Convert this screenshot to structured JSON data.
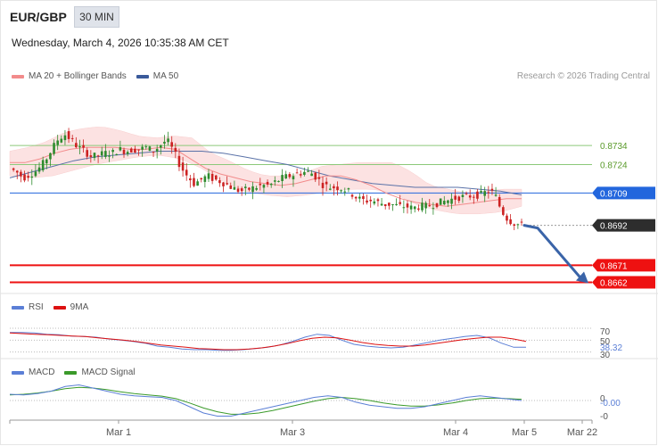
{
  "header": {
    "symbol": "EUR/GBP",
    "timeframe": "30 MIN",
    "datetime": "Wednesday, March 4, 2026 10:35:38 AM CET",
    "copyright": "Research © 2026 Trading Central"
  },
  "legends": {
    "main": [
      {
        "label": "MA 20 + Bollinger Bands",
        "color": "#f28b8b"
      },
      {
        "label": "MA 50",
        "color": "#3a5a9a"
      }
    ],
    "rsi": [
      {
        "label": "RSI",
        "color": "#5b7fd6"
      },
      {
        "label": "9MA",
        "color": "#dd1111"
      }
    ],
    "macd": [
      {
        "label": "MACD",
        "color": "#5b7fd6"
      },
      {
        "label": "MACD Signal",
        "color": "#3a9a2a"
      }
    ]
  },
  "colors": {
    "bull": "#2e8b2e",
    "bear": "#cc2222",
    "band_fill": "#fcdede",
    "ma20": "#f28b8b",
    "ma50": "#5a72a8",
    "support_red": "#ee1111",
    "green_level": "#8cc97a",
    "blue_level": "#2266dd",
    "current_tag": "#2d2d2d",
    "forecast_arrow": "#3a64a8"
  },
  "chart_data": [
    {
      "type": "candlestick",
      "title": "EUR/GBP 30 MIN",
      "x_tick_labels": [
        "Mar 1",
        "Mar 3",
        "Mar 4",
        "Mar 5",
        "Mar 22"
      ],
      "ylim": [
        0.8658,
        0.8766
      ],
      "price_levels": [
        {
          "value": 0.8734,
          "label": "0.8734",
          "kind": "resistance"
        },
        {
          "value": 0.8724,
          "label": "0.8724",
          "kind": "resistance"
        },
        {
          "value": 0.8709,
          "label": "0.8709",
          "kind": "pivot"
        },
        {
          "value": 0.8692,
          "label": "0.8692",
          "kind": "current"
        },
        {
          "value": 0.8671,
          "label": "0.8671",
          "kind": "support"
        },
        {
          "value": 0.8662,
          "label": "0.8662",
          "kind": "support"
        }
      ],
      "close_path": [
        0.8722,
        0.872,
        0.8717,
        0.8719,
        0.8721,
        0.8725,
        0.8731,
        0.8737,
        0.874,
        0.8737,
        0.8733,
        0.8731,
        0.8728,
        0.8729,
        0.873,
        0.873,
        0.8732,
        0.8731,
        0.8732,
        0.8732,
        0.8733,
        0.8731,
        0.8734,
        0.8737,
        0.8731,
        0.8723,
        0.8718,
        0.8714,
        0.8716,
        0.8718,
        0.8716,
        0.8715,
        0.8713,
        0.8711,
        0.871,
        0.8711,
        0.8712,
        0.8713,
        0.8713,
        0.8715,
        0.8717,
        0.8718,
        0.8719,
        0.872,
        0.872,
        0.8717,
        0.8713,
        0.8712,
        0.8712,
        0.8711,
        0.8709,
        0.8706,
        0.8705,
        0.8705,
        0.8704,
        0.8703,
        0.8703,
        0.8702,
        0.8702,
        0.8701,
        0.8702,
        0.8702,
        0.8703,
        0.8704,
        0.8705,
        0.8706,
        0.8707,
        0.8707,
        0.8708,
        0.8708,
        0.871,
        0.8709,
        0.87,
        0.8695,
        0.8693,
        0.8692
      ],
      "ma20_path": [
        0.8725,
        0.8725,
        0.8727,
        0.873,
        0.8732,
        0.8733,
        0.8733,
        0.8733,
        0.8732,
        0.8732,
        0.8733,
        0.8732,
        0.8727,
        0.8722,
        0.8719,
        0.8717,
        0.8715,
        0.8714,
        0.8713,
        0.8714,
        0.8716,
        0.8718,
        0.8718,
        0.8716,
        0.8713,
        0.8709,
        0.8706,
        0.8704,
        0.8703,
        0.8702,
        0.8703,
        0.8704,
        0.8705,
        0.8706,
        0.8706
      ],
      "ma50_path": [
        0.8717,
        0.872,
        0.8723,
        0.8726,
        0.8728,
        0.8729,
        0.873,
        0.8731,
        0.8731,
        0.8731,
        0.873,
        0.8728,
        0.8726,
        0.8724,
        0.8721,
        0.8718,
        0.8716,
        0.8714,
        0.8713,
        0.8712,
        0.8712,
        0.8712,
        0.8711,
        0.871,
        0.8708
      ],
      "bollinger_upper": [
        0.8731,
        0.8733,
        0.8736,
        0.8741,
        0.8743,
        0.8744,
        0.8742,
        0.8739,
        0.8738,
        0.8739,
        0.8738,
        0.873,
        0.8726,
        0.8721,
        0.8718,
        0.8718,
        0.8719,
        0.8723,
        0.8724,
        0.8725,
        0.8725,
        0.8725,
        0.872,
        0.8713,
        0.8711,
        0.8709,
        0.871,
        0.8711,
        0.8711
      ],
      "bollinger_lower": [
        0.8718,
        0.8717,
        0.8718,
        0.8721,
        0.8724,
        0.8726,
        0.8728,
        0.8729,
        0.8727,
        0.8722,
        0.8715,
        0.871,
        0.8708,
        0.8707,
        0.8708,
        0.871,
        0.8711,
        0.8711,
        0.8709,
        0.8703,
        0.87,
        0.8698,
        0.8698,
        0.8699,
        0.8702
      ],
      "forecast": {
        "from": 0.8692,
        "to": 0.8662,
        "direction": "down"
      }
    },
    {
      "type": "line",
      "title": "RSI",
      "y_tick_labels": [
        "70",
        "50",
        "38.32",
        "30"
      ],
      "last_value": "38.32",
      "series": [
        {
          "name": "RSI",
          "values": [
            63,
            63,
            62,
            60,
            59,
            57,
            56,
            55,
            52,
            50,
            48,
            45,
            40,
            38,
            35,
            34,
            34,
            33,
            33,
            34,
            36,
            38,
            42,
            48,
            55,
            60,
            58,
            50,
            43,
            40,
            38,
            37,
            38,
            42,
            46,
            50,
            53,
            56,
            58,
            54,
            45,
            38,
            38
          ]
        },
        {
          "name": "9MA",
          "values": [
            62,
            61,
            60,
            59,
            58,
            57,
            56,
            54,
            52,
            50,
            48,
            45,
            42,
            40,
            38,
            36,
            35,
            34,
            34,
            35,
            37,
            40,
            44,
            49,
            53,
            55,
            54,
            50,
            46,
            43,
            41,
            40,
            40,
            42,
            45,
            48,
            51,
            53,
            55,
            55,
            52,
            48
          ]
        }
      ]
    },
    {
      "type": "line",
      "title": "MACD",
      "y_tick_labels": [
        "0",
        "-0.00",
        "-0"
      ],
      "last_value": "-0.00",
      "series": [
        {
          "name": "MACD",
          "values": [
            0.0002,
            0.00018,
            0.00022,
            0.0003,
            0.00045,
            0.0005,
            0.0004,
            0.0003,
            0.0002,
            0.00015,
            0.00012,
            0.0001,
            0.0,
            -0.0002,
            -0.0004,
            -0.0005,
            -0.0005,
            -0.0004,
            -0.0003,
            -0.0002,
            -0.0001,
            0.0,
            0.0001,
            0.00015,
            0.0001,
            -5e-05,
            -0.00015,
            -0.0002,
            -0.00025,
            -0.00025,
            -0.0002,
            -0.0001,
            0.0,
            0.0001,
            0.00015,
            0.0001,
            5e-05,
            0.0
          ]
        },
        {
          "name": "MACD Signal",
          "values": [
            0.00018,
            0.0002,
            0.00024,
            0.0003,
            0.00038,
            0.00042,
            0.0004,
            0.00035,
            0.00028,
            0.00022,
            0.00018,
            0.00014,
            6e-05,
            -8e-05,
            -0.00024,
            -0.00036,
            -0.00044,
            -0.00044,
            -0.0004,
            -0.00032,
            -0.00022,
            -0.00012,
            -2e-05,
            6e-05,
            0.0001,
            6e-05,
            0.0,
            -8e-05,
            -0.00014,
            -0.00018,
            -0.00018,
            -0.00014,
            -8e-05,
            0.0,
            6e-05,
            8e-05,
            6e-05,
            4e-05
          ]
        }
      ]
    }
  ]
}
